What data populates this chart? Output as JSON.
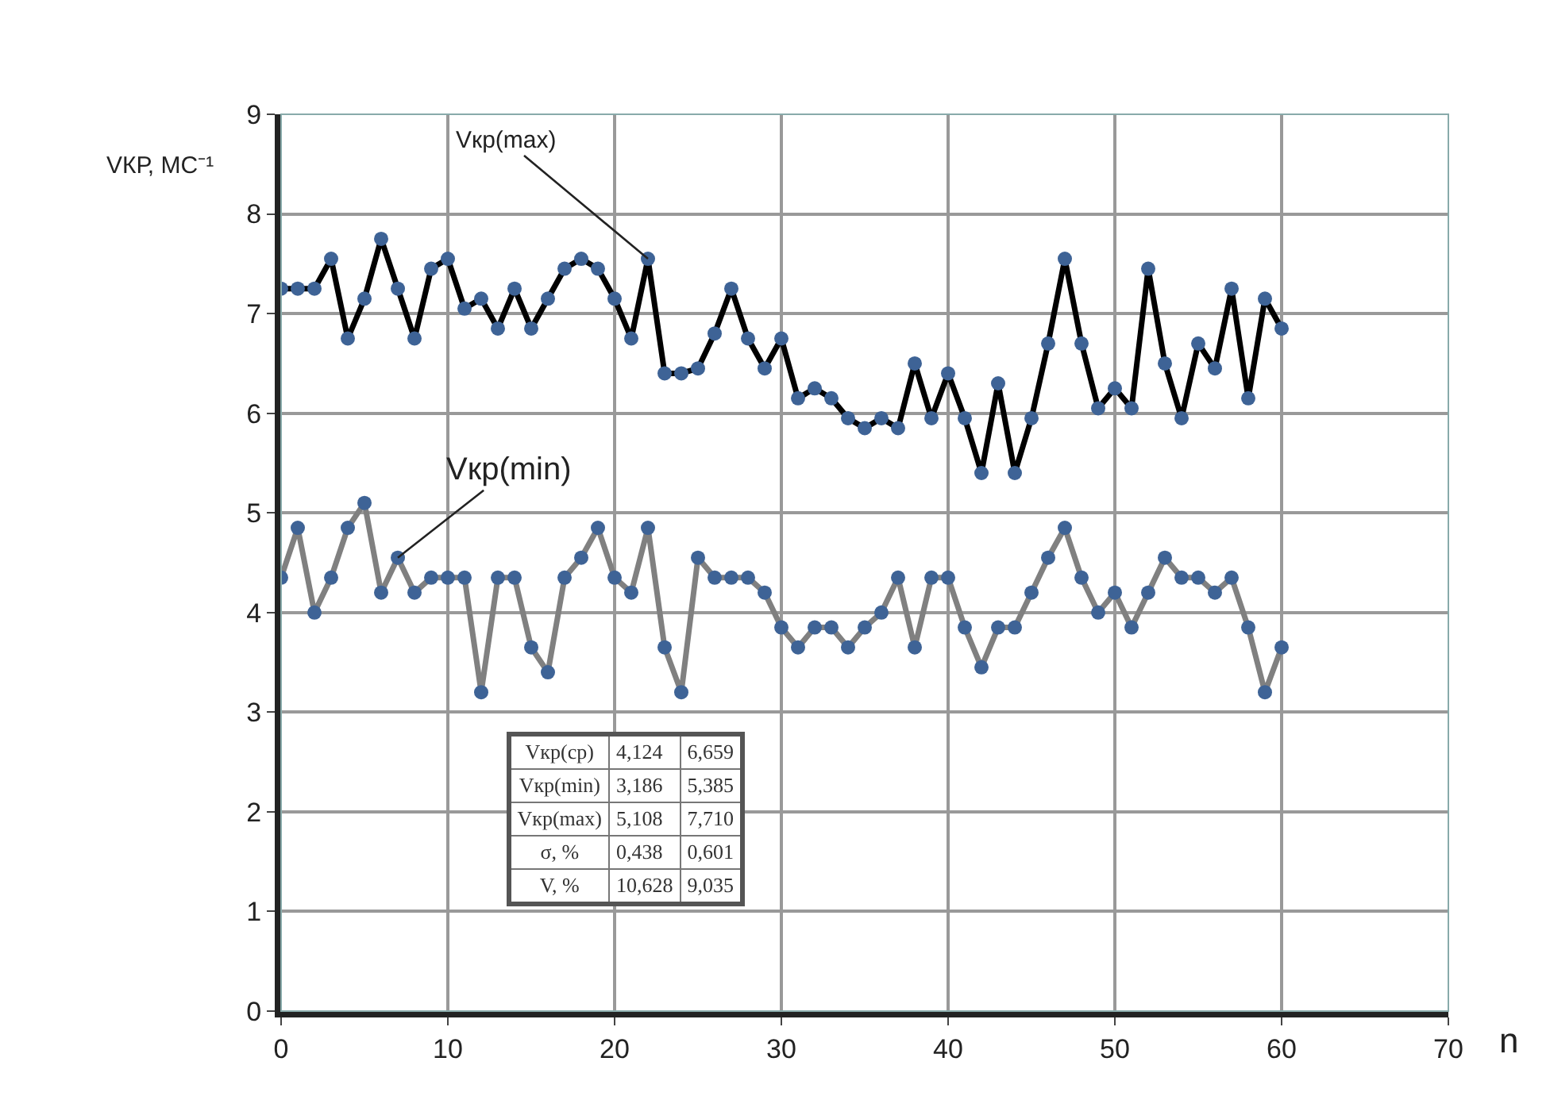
{
  "chart_data": {
    "type": "line",
    "ylabel": "VКР, МС⁻¹",
    "xlabel": "n",
    "x": [
      0,
      1,
      2,
      3,
      4,
      5,
      6,
      7,
      8,
      9,
      10,
      11,
      12,
      13,
      14,
      15,
      16,
      17,
      18,
      19,
      20,
      21,
      22,
      23,
      24,
      25,
      26,
      27,
      28,
      29,
      30,
      31,
      32,
      33,
      34,
      35,
      36,
      37,
      38,
      39,
      40,
      41,
      42,
      43,
      44,
      45,
      46,
      47,
      48,
      49,
      50,
      51,
      52,
      53,
      54,
      55,
      56,
      57,
      58,
      59,
      60
    ],
    "series": [
      {
        "name": "Vкр(max)",
        "color": "#000000",
        "values": [
          7.25,
          7.25,
          7.25,
          7.55,
          6.75,
          7.15,
          7.75,
          7.25,
          6.75,
          7.45,
          7.55,
          7.05,
          7.15,
          6.85,
          7.25,
          6.85,
          7.15,
          7.45,
          7.55,
          7.45,
          7.15,
          6.75,
          7.55,
          6.4,
          6.4,
          6.45,
          6.8,
          7.25,
          6.75,
          6.45,
          6.75,
          6.15,
          6.25,
          6.15,
          5.95,
          5.85,
          5.95,
          5.85,
          6.5,
          5.95,
          6.4,
          5.95,
          5.4,
          6.3,
          5.4,
          5.95,
          6.7,
          7.55,
          6.7,
          6.05,
          6.25,
          6.05,
          7.45,
          6.5,
          5.95,
          6.7,
          6.45,
          7.25,
          6.15,
          7.15,
          6.85
        ]
      },
      {
        "name": "Vкр(min)",
        "color": "#808080",
        "values": [
          4.35,
          4.85,
          4.0,
          4.35,
          4.85,
          5.1,
          4.2,
          4.55,
          4.2,
          4.35,
          4.35,
          4.35,
          3.2,
          4.35,
          4.35,
          3.65,
          3.4,
          4.35,
          4.55,
          4.85,
          4.35,
          4.2,
          4.85,
          3.65,
          3.2,
          4.55,
          4.35,
          4.35,
          4.35,
          4.2,
          3.85,
          3.65,
          3.85,
          3.85,
          3.65,
          3.85,
          4.0,
          4.35,
          3.65,
          4.35,
          4.35,
          3.85,
          3.45,
          3.85,
          3.85,
          4.2,
          4.55,
          4.85,
          4.35,
          4.0,
          4.2,
          3.85,
          4.2,
          4.55,
          4.35,
          4.35,
          4.2,
          4.35,
          3.85,
          3.2,
          3.65
        ]
      }
    ],
    "annotations": [
      "Vкр(ср)",
      "4,124",
      "6,659",
      "Vкр(min)",
      "3,186",
      "5,385",
      "Vкр(max)",
      "5,108",
      "7,710",
      "σ, %",
      "0,438",
      "0,601",
      "V, %",
      "10,628",
      "9,035"
    ],
    "xlim": [
      0,
      70
    ],
    "xticks": [
      0,
      10,
      20,
      30,
      40,
      50,
      60,
      70
    ],
    "ylim": [
      0,
      9
    ],
    "yticks": [
      0,
      1,
      2,
      3,
      4,
      5,
      6,
      7,
      8,
      9
    ],
    "grid": true,
    "legend": false,
    "marker": "circle",
    "line_style": "solid"
  }
}
